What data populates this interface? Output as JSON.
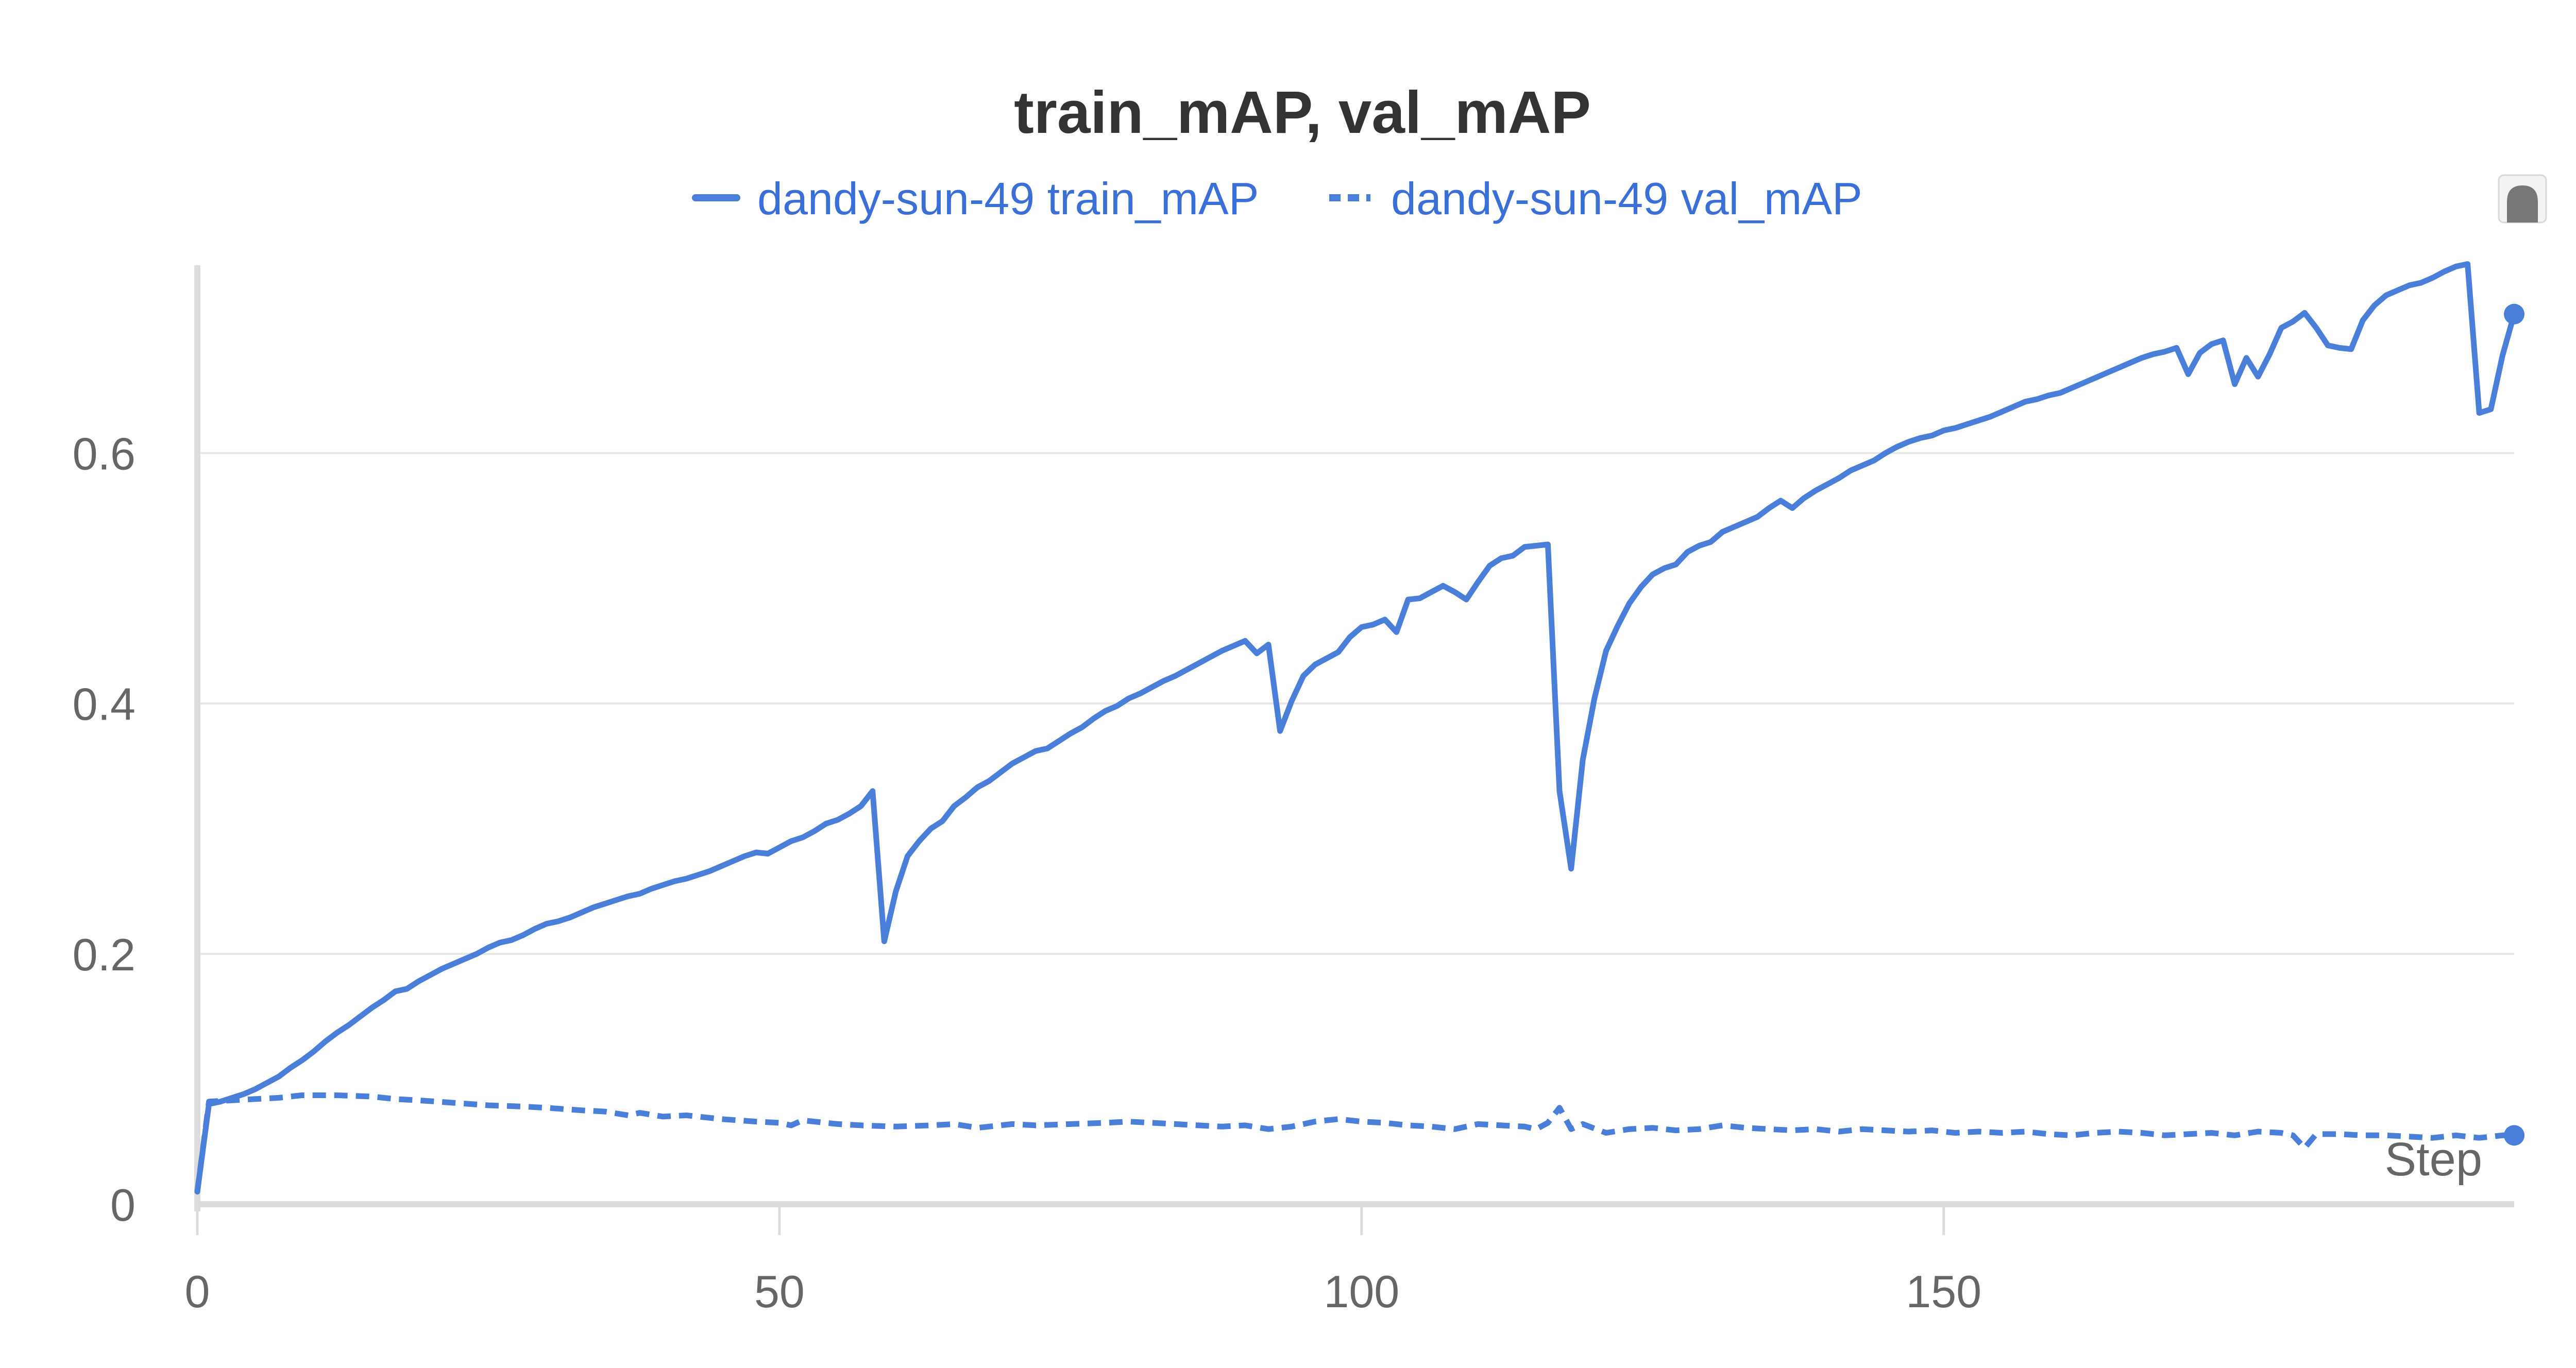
{
  "chart_data": {
    "type": "line",
    "title": "train_mAP, val_mAP",
    "xlabel": "Step",
    "ylabel": "",
    "xlim": [
      0,
      199
    ],
    "ylim": [
      0,
      0.75
    ],
    "x_ticks": [
      0,
      50,
      100,
      150
    ],
    "x_tick_labels": [
      "0",
      "50",
      "100",
      "150"
    ],
    "y_ticks": [
      0,
      0.2,
      0.4,
      0.6
    ],
    "y_tick_labels": [
      "0",
      "0.2",
      "0.4",
      "0.6"
    ],
    "grid": true,
    "legend_position": "top-center",
    "series": [
      {
        "name": "dandy-sun-49 train_mAP",
        "color": "#4a7fd9",
        "style": "solid",
        "points": [
          [
            0,
            0.01
          ],
          [
            1,
            0.08
          ],
          [
            2,
            0.082
          ],
          [
            3,
            0.085
          ],
          [
            4,
            0.088
          ],
          [
            5,
            0.092
          ],
          [
            6,
            0.097
          ],
          [
            7,
            0.102
          ],
          [
            8,
            0.109
          ],
          [
            9,
            0.115
          ],
          [
            10,
            0.122
          ],
          [
            11,
            0.13
          ],
          [
            12,
            0.137
          ],
          [
            13,
            0.143
          ],
          [
            14,
            0.15
          ],
          [
            15,
            0.157
          ],
          [
            16,
            0.163
          ],
          [
            17,
            0.17
          ],
          [
            18,
            0.172
          ],
          [
            19,
            0.178
          ],
          [
            20,
            0.183
          ],
          [
            21,
            0.188
          ],
          [
            22,
            0.192
          ],
          [
            23,
            0.196
          ],
          [
            24,
            0.2
          ],
          [
            25,
            0.205
          ],
          [
            26,
            0.209
          ],
          [
            27,
            0.211
          ],
          [
            28,
            0.215
          ],
          [
            29,
            0.22
          ],
          [
            30,
            0.224
          ],
          [
            31,
            0.226
          ],
          [
            32,
            0.229
          ],
          [
            33,
            0.233
          ],
          [
            34,
            0.237
          ],
          [
            35,
            0.24
          ],
          [
            36,
            0.243
          ],
          [
            37,
            0.246
          ],
          [
            38,
            0.248
          ],
          [
            39,
            0.252
          ],
          [
            40,
            0.255
          ],
          [
            41,
            0.258
          ],
          [
            42,
            0.26
          ],
          [
            43,
            0.263
          ],
          [
            44,
            0.266
          ],
          [
            45,
            0.27
          ],
          [
            46,
            0.274
          ],
          [
            47,
            0.278
          ],
          [
            48,
            0.281
          ],
          [
            49,
            0.28
          ],
          [
            50,
            0.285
          ],
          [
            51,
            0.29
          ],
          [
            52,
            0.293
          ],
          [
            53,
            0.298
          ],
          [
            54,
            0.304
          ],
          [
            55,
            0.307
          ],
          [
            56,
            0.312
          ],
          [
            57,
            0.318
          ],
          [
            58,
            0.33
          ],
          [
            59,
            0.21
          ],
          [
            60,
            0.25
          ],
          [
            61,
            0.278
          ],
          [
            62,
            0.29
          ],
          [
            63,
            0.3
          ],
          [
            64,
            0.306
          ],
          [
            65,
            0.318
          ],
          [
            66,
            0.325
          ],
          [
            67,
            0.333
          ],
          [
            68,
            0.338
          ],
          [
            69,
            0.345
          ],
          [
            70,
            0.352
          ],
          [
            71,
            0.357
          ],
          [
            72,
            0.362
          ],
          [
            73,
            0.364
          ],
          [
            74,
            0.37
          ],
          [
            75,
            0.376
          ],
          [
            76,
            0.381
          ],
          [
            77,
            0.388
          ],
          [
            78,
            0.394
          ],
          [
            79,
            0.398
          ],
          [
            80,
            0.404
          ],
          [
            81,
            0.408
          ],
          [
            82,
            0.413
          ],
          [
            83,
            0.418
          ],
          [
            84,
            0.422
          ],
          [
            85,
            0.427
          ],
          [
            86,
            0.432
          ],
          [
            87,
            0.437
          ],
          [
            88,
            0.442
          ],
          [
            89,
            0.446
          ],
          [
            90,
            0.45
          ],
          [
            91,
            0.44
          ],
          [
            92,
            0.447
          ],
          [
            93,
            0.378
          ],
          [
            94,
            0.402
          ],
          [
            95,
            0.422
          ],
          [
            96,
            0.431
          ],
          [
            97,
            0.436
          ],
          [
            98,
            0.441
          ],
          [
            99,
            0.453
          ],
          [
            100,
            0.461
          ],
          [
            101,
            0.463
          ],
          [
            102,
            0.467
          ],
          [
            103,
            0.457
          ],
          [
            104,
            0.483
          ],
          [
            105,
            0.484
          ],
          [
            106,
            0.489
          ],
          [
            107,
            0.494
          ],
          [
            108,
            0.489
          ],
          [
            109,
            0.483
          ],
          [
            110,
            0.497
          ],
          [
            111,
            0.51
          ],
          [
            112,
            0.516
          ],
          [
            113,
            0.518
          ],
          [
            114,
            0.525
          ],
          [
            115,
            0.526
          ],
          [
            116,
            0.527
          ],
          [
            117,
            0.33
          ],
          [
            118,
            0.268
          ],
          [
            119,
            0.355
          ],
          [
            120,
            0.404
          ],
          [
            121,
            0.442
          ],
          [
            122,
            0.462
          ],
          [
            123,
            0.48
          ],
          [
            124,
            0.493
          ],
          [
            125,
            0.503
          ],
          [
            126,
            0.508
          ],
          [
            127,
            0.511
          ],
          [
            128,
            0.521
          ],
          [
            129,
            0.526
          ],
          [
            130,
            0.529
          ],
          [
            131,
            0.537
          ],
          [
            132,
            0.541
          ],
          [
            133,
            0.545
          ],
          [
            134,
            0.549
          ],
          [
            135,
            0.556
          ],
          [
            136,
            0.562
          ],
          [
            137,
            0.556
          ],
          [
            138,
            0.564
          ],
          [
            139,
            0.57
          ],
          [
            140,
            0.575
          ],
          [
            141,
            0.58
          ],
          [
            142,
            0.586
          ],
          [
            143,
            0.59
          ],
          [
            144,
            0.594
          ],
          [
            145,
            0.6
          ],
          [
            146,
            0.605
          ],
          [
            147,
            0.609
          ],
          [
            148,
            0.612
          ],
          [
            149,
            0.614
          ],
          [
            150,
            0.618
          ],
          [
            151,
            0.62
          ],
          [
            152,
            0.623
          ],
          [
            153,
            0.626
          ],
          [
            154,
            0.629
          ],
          [
            155,
            0.633
          ],
          [
            156,
            0.637
          ],
          [
            157,
            0.641
          ],
          [
            158,
            0.643
          ],
          [
            159,
            0.646
          ],
          [
            160,
            0.648
          ],
          [
            161,
            0.652
          ],
          [
            162,
            0.656
          ],
          [
            163,
            0.66
          ],
          [
            164,
            0.664
          ],
          [
            165,
            0.668
          ],
          [
            166,
            0.672
          ],
          [
            167,
            0.676
          ],
          [
            168,
            0.679
          ],
          [
            169,
            0.681
          ],
          [
            170,
            0.684
          ],
          [
            171,
            0.663
          ],
          [
            172,
            0.68
          ],
          [
            173,
            0.687
          ],
          [
            174,
            0.69
          ],
          [
            175,
            0.655
          ],
          [
            176,
            0.676
          ],
          [
            177,
            0.661
          ],
          [
            178,
            0.679
          ],
          [
            179,
            0.7
          ],
          [
            180,
            0.705
          ],
          [
            181,
            0.712
          ],
          [
            182,
            0.7
          ],
          [
            183,
            0.686
          ],
          [
            184,
            0.684
          ],
          [
            185,
            0.683
          ],
          [
            186,
            0.706
          ],
          [
            187,
            0.718
          ],
          [
            188,
            0.726
          ],
          [
            189,
            0.73
          ],
          [
            190,
            0.734
          ],
          [
            191,
            0.736
          ],
          [
            192,
            0.74
          ],
          [
            193,
            0.745
          ],
          [
            194,
            0.749
          ],
          [
            195,
            0.751
          ],
          [
            196,
            0.632
          ],
          [
            197,
            0.635
          ],
          [
            198,
            0.678
          ],
          [
            199,
            0.711
          ]
        ]
      },
      {
        "name": "dandy-sun-49 val_mAP",
        "color": "#4a7fd9",
        "style": "dashed",
        "points": [
          [
            0,
            0.01
          ],
          [
            1,
            0.082
          ],
          [
            3,
            0.083
          ],
          [
            5,
            0.084
          ],
          [
            7,
            0.085
          ],
          [
            9,
            0.087
          ],
          [
            12,
            0.087
          ],
          [
            15,
            0.086
          ],
          [
            17,
            0.084
          ],
          [
            19,
            0.083
          ],
          [
            22,
            0.081
          ],
          [
            25,
            0.079
          ],
          [
            28,
            0.078
          ],
          [
            30,
            0.077
          ],
          [
            33,
            0.075
          ],
          [
            35,
            0.074
          ],
          [
            37,
            0.071
          ],
          [
            38,
            0.073
          ],
          [
            40,
            0.07
          ],
          [
            42,
            0.071
          ],
          [
            45,
            0.068
          ],
          [
            48,
            0.066
          ],
          [
            50,
            0.065
          ],
          [
            51,
            0.063
          ],
          [
            52,
            0.067
          ],
          [
            53,
            0.066
          ],
          [
            55,
            0.064
          ],
          [
            57,
            0.063
          ],
          [
            60,
            0.062
          ],
          [
            63,
            0.063
          ],
          [
            65,
            0.064
          ],
          [
            67,
            0.061
          ],
          [
            70,
            0.064
          ],
          [
            72,
            0.063
          ],
          [
            75,
            0.064
          ],
          [
            78,
            0.065
          ],
          [
            80,
            0.066
          ],
          [
            82,
            0.065
          ],
          [
            84,
            0.064
          ],
          [
            86,
            0.063
          ],
          [
            88,
            0.062
          ],
          [
            90,
            0.063
          ],
          [
            92,
            0.06
          ],
          [
            94,
            0.062
          ],
          [
            96,
            0.066
          ],
          [
            98,
            0.068
          ],
          [
            100,
            0.066
          ],
          [
            102,
            0.065
          ],
          [
            104,
            0.063
          ],
          [
            106,
            0.062
          ],
          [
            108,
            0.06
          ],
          [
            110,
            0.064
          ],
          [
            112,
            0.063
          ],
          [
            114,
            0.062
          ],
          [
            115,
            0.06
          ],
          [
            116,
            0.065
          ],
          [
            117,
            0.077
          ],
          [
            118,
            0.06
          ],
          [
            119,
            0.064
          ],
          [
            121,
            0.057
          ],
          [
            123,
            0.06
          ],
          [
            125,
            0.061
          ],
          [
            127,
            0.059
          ],
          [
            129,
            0.06
          ],
          [
            131,
            0.063
          ],
          [
            133,
            0.061
          ],
          [
            135,
            0.06
          ],
          [
            137,
            0.059
          ],
          [
            139,
            0.06
          ],
          [
            141,
            0.058
          ],
          [
            143,
            0.06
          ],
          [
            145,
            0.059
          ],
          [
            147,
            0.058
          ],
          [
            149,
            0.059
          ],
          [
            151,
            0.057
          ],
          [
            153,
            0.058
          ],
          [
            155,
            0.057
          ],
          [
            157,
            0.058
          ],
          [
            159,
            0.056
          ],
          [
            161,
            0.055
          ],
          [
            163,
            0.057
          ],
          [
            165,
            0.058
          ],
          [
            167,
            0.057
          ],
          [
            169,
            0.055
          ],
          [
            171,
            0.056
          ],
          [
            173,
            0.057
          ],
          [
            175,
            0.055
          ],
          [
            177,
            0.058
          ],
          [
            179,
            0.057
          ],
          [
            180,
            0.055
          ],
          [
            181,
            0.045
          ],
          [
            182,
            0.056
          ],
          [
            184,
            0.056
          ],
          [
            186,
            0.055
          ],
          [
            188,
            0.055
          ],
          [
            190,
            0.054
          ],
          [
            192,
            0.053
          ],
          [
            194,
            0.055
          ],
          [
            196,
            0.053
          ],
          [
            198,
            0.055
          ],
          [
            199,
            0.055
          ]
        ]
      }
    ]
  }
}
